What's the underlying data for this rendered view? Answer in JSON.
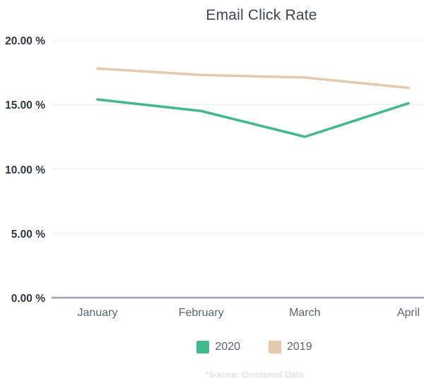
{
  "title": "Email Click Rate",
  "footer": {
    "source_note": "*Source: Omnisend Data"
  },
  "legend": {
    "items": [
      {
        "label": "2020",
        "color": "#42b88c"
      },
      {
        "label": "2019",
        "color": "#e6c9ac"
      }
    ]
  },
  "colors": {
    "series_2020": "#42b88c",
    "series_2019": "#e6c9ac",
    "gridline": "#ececec",
    "axis_line": "#9aa3ad",
    "title_text": "#3b454f",
    "y_label_text": "#2c3847",
    "x_label_text": "#5b6470",
    "source_text": "#dcdcdc"
  },
  "chart_data": {
    "type": "line",
    "title": "Email Click Rate",
    "categories": [
      "January",
      "February",
      "March",
      "April"
    ],
    "series": [
      {
        "name": "2020",
        "color": "#42b88c",
        "values": [
          15.4,
          14.5,
          12.5,
          15.1
        ]
      },
      {
        "name": "2019",
        "color": "#e6c9ac",
        "values": [
          17.8,
          17.3,
          17.1,
          16.3
        ]
      }
    ],
    "xlabel": "",
    "ylabel": "",
    "ylim": [
      0,
      20
    ],
    "yticks": [
      20,
      15,
      10,
      5,
      0
    ],
    "ytick_labels": [
      "20.00 %",
      "15.00 %",
      "10.00 %",
      "5.00 %",
      "0.00 %"
    ],
    "unit": "%",
    "grid": "horizontal",
    "legend_position": "bottom"
  }
}
